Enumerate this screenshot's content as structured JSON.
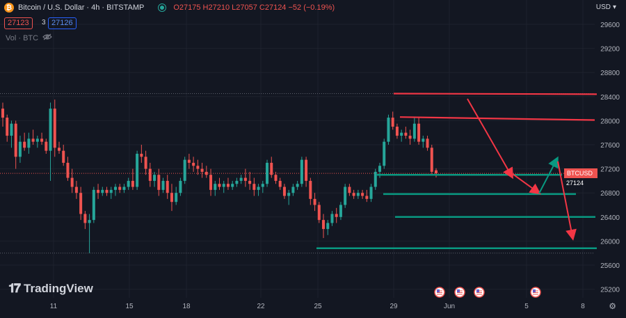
{
  "header": {
    "symbol_title": "Bitcoin / U.S. Dollar · 4h · BITSTAMP",
    "ohlc_label": "O27175 H27210 L27057 C27124 −52 (−0.19%)",
    "bid": "27123",
    "spread": "3",
    "ask": "27126",
    "volume_label": "Vol · BTC"
  },
  "price_axis": {
    "currency": "USD",
    "ticks": [
      "29600",
      "29200",
      "28800",
      "28400",
      "28000",
      "27600",
      "27200",
      "26800",
      "26400",
      "26000",
      "25600",
      "25200"
    ],
    "current_symbol": "BTCUSD",
    "current_price": "27124"
  },
  "time_axis": {
    "labels": [
      "11",
      "15",
      "18",
      "22",
      "25",
      "29",
      "Jun",
      "5",
      "8"
    ]
  },
  "branding": {
    "logo_text": "TradingView"
  },
  "colors": {
    "bull": "#26a69a",
    "bear": "#ef5350",
    "bg": "#131722",
    "annotation_red": "#f23645",
    "annotation_green": "#089981"
  },
  "chart_data": {
    "type": "candlestick",
    "symbol": "BTCUSD",
    "interval": "4h",
    "y_range": [
      25100,
      29750
    ],
    "x_labels": [
      "11",
      "15",
      "18",
      "22",
      "25",
      "29",
      "Jun",
      "5",
      "8"
    ],
    "current_price": 27124,
    "horizontal_levels": [
      {
        "price": 28450,
        "style": "dotted"
      },
      {
        "price": 27124,
        "style": "dotted-current"
      },
      {
        "price": 25800,
        "style": "dotted"
      }
    ],
    "annotation_lines": [
      {
        "color": "red",
        "from_price": 28450,
        "to_price": 28440
      },
      {
        "color": "red",
        "from_price": 28060,
        "to_price": 28010
      },
      {
        "color": "green",
        "price": 27100
      },
      {
        "color": "green",
        "price": 26780
      },
      {
        "color": "green",
        "price": 26400
      },
      {
        "color": "green",
        "price": 25880
      }
    ],
    "candles": [
      [
        28200,
        28300,
        27900,
        28050
      ],
      [
        28050,
        28100,
        27650,
        27750
      ],
      [
        27750,
        28000,
        27550,
        27950
      ],
      [
        27950,
        28000,
        27200,
        27400
      ],
      [
        27400,
        27750,
        27300,
        27650
      ],
      [
        27650,
        27800,
        27500,
        27550
      ],
      [
        27550,
        27800,
        27450,
        27700
      ],
      [
        27700,
        27850,
        27600,
        27650
      ],
      [
        27650,
        27750,
        27550,
        27700
      ],
      [
        27700,
        27800,
        27600,
        27650
      ],
      [
        27650,
        27700,
        27450,
        27500
      ],
      [
        27500,
        28300,
        27000,
        28200
      ],
      [
        28200,
        28350,
        27400,
        27550
      ],
      [
        27550,
        27650,
        27450,
        27500
      ],
      [
        27500,
        27600,
        27250,
        27300
      ],
      [
        27300,
        27400,
        27000,
        27050
      ],
      [
        27050,
        27200,
        26800,
        26900
      ],
      [
        26900,
        27000,
        26700,
        26800
      ],
      [
        26800,
        26900,
        26350,
        26450
      ],
      [
        26450,
        26500,
        26200,
        26300
      ],
      [
        26300,
        26450,
        25800,
        26350
      ],
      [
        26350,
        26900,
        26300,
        26850
      ],
      [
        26850,
        26950,
        26700,
        26800
      ],
      [
        26800,
        26900,
        26750,
        26850
      ],
      [
        26850,
        26900,
        26750,
        26800
      ],
      [
        26800,
        26900,
        26700,
        26850
      ],
      [
        26850,
        26950,
        26750,
        26900
      ],
      [
        26900,
        26950,
        26800,
        26850
      ],
      [
        26850,
        26950,
        26800,
        26900
      ],
      [
        26900,
        27050,
        26850,
        27000
      ],
      [
        27000,
        27200,
        26850,
        26900
      ],
      [
        26900,
        27500,
        26850,
        27450
      ],
      [
        27450,
        27600,
        27300,
        27400
      ],
      [
        27400,
        27500,
        27100,
        27200
      ],
      [
        27200,
        27300,
        26900,
        27000
      ],
      [
        27000,
        27150,
        26900,
        27100
      ],
      [
        27100,
        27200,
        26750,
        26850
      ],
      [
        26850,
        27050,
        26800,
        27000
      ],
      [
        27000,
        27100,
        26700,
        26800
      ],
      [
        26800,
        26950,
        26500,
        26650
      ],
      [
        26650,
        26900,
        26600,
        26800
      ],
      [
        26800,
        27050,
        26750,
        27000
      ],
      [
        27000,
        27400,
        26950,
        27350
      ],
      [
        27350,
        27450,
        27200,
        27300
      ],
      [
        27300,
        27400,
        27150,
        27250
      ],
      [
        27250,
        27350,
        27100,
        27200
      ],
      [
        27200,
        27300,
        27050,
        27150
      ],
      [
        27150,
        27250,
        27050,
        27100
      ],
      [
        27100,
        27200,
        26750,
        26850
      ],
      [
        26850,
        27000,
        26750,
        26950
      ],
      [
        26950,
        27050,
        26850,
        26900
      ],
      [
        26900,
        27000,
        26800,
        26950
      ],
      [
        26950,
        27050,
        26850,
        26900
      ],
      [
        26900,
        27000,
        26850,
        26950
      ],
      [
        26950,
        27050,
        26900,
        27000
      ],
      [
        27000,
        27100,
        26950,
        27050
      ],
      [
        27050,
        27200,
        26900,
        27000
      ],
      [
        27000,
        27150,
        26850,
        26950
      ],
      [
        26950,
        27050,
        26750,
        26850
      ],
      [
        26850,
        26950,
        26750,
        26900
      ],
      [
        26900,
        27000,
        26800,
        26950
      ],
      [
        26950,
        27350,
        26900,
        27300
      ],
      [
        27300,
        27400,
        27050,
        27100
      ],
      [
        27100,
        27150,
        26950,
        27000
      ],
      [
        27000,
        27050,
        26850,
        26900
      ],
      [
        26900,
        26950,
        26700,
        26750
      ],
      [
        26750,
        26850,
        26600,
        26800
      ],
      [
        26800,
        26950,
        26750,
        26900
      ],
      [
        26900,
        27000,
        26850,
        26950
      ],
      [
        26950,
        27400,
        26900,
        27350
      ],
      [
        27350,
        27400,
        26900,
        27000
      ],
      [
        27000,
        27050,
        26600,
        26700
      ],
      [
        26700,
        26800,
        26500,
        26600
      ],
      [
        26600,
        26650,
        26300,
        26350
      ],
      [
        26350,
        26450,
        26050,
        26200
      ],
      [
        26200,
        26350,
        26100,
        26300
      ],
      [
        26300,
        26500,
        26250,
        26450
      ],
      [
        26450,
        26550,
        26300,
        26400
      ],
      [
        26400,
        26650,
        26350,
        26600
      ],
      [
        26600,
        26950,
        26550,
        26900
      ],
      [
        26900,
        26950,
        26750,
        26800
      ],
      [
        26800,
        26850,
        26700,
        26750
      ],
      [
        26750,
        26850,
        26700,
        26800
      ],
      [
        26800,
        26850,
        26700,
        26750
      ],
      [
        26750,
        26850,
        26650,
        26700
      ],
      [
        26700,
        26950,
        26650,
        26900
      ],
      [
        26900,
        27200,
        26850,
        27150
      ],
      [
        27150,
        27300,
        27050,
        27250
      ],
      [
        27250,
        27700,
        27200,
        27650
      ],
      [
        27650,
        28100,
        27600,
        28050
      ],
      [
        28050,
        28150,
        27850,
        27900
      ],
      [
        27900,
        27950,
        27700,
        27750
      ],
      [
        27750,
        27850,
        27650,
        27800
      ],
      [
        27800,
        27900,
        27700,
        27750
      ],
      [
        27750,
        27850,
        27600,
        27700
      ],
      [
        27700,
        28050,
        27650,
        27950
      ],
      [
        27950,
        28050,
        27600,
        27650
      ],
      [
        27650,
        27750,
        27550,
        27700
      ],
      [
        27700,
        27750,
        27500,
        27550
      ],
      [
        27550,
        27600,
        27100,
        27150
      ],
      [
        27175,
        27210,
        27057,
        27124
      ]
    ]
  }
}
